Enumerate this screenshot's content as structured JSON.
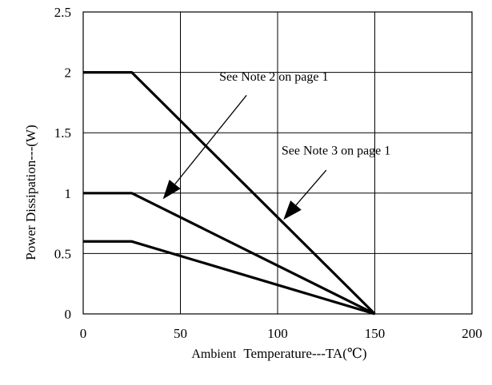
{
  "chart_data": {
    "type": "line",
    "xlabel_parts": [
      "Ambient",
      "Temperature---TA(℃)"
    ],
    "ylabel": "Power Dissipation---(W)",
    "xlim": [
      0,
      200
    ],
    "ylim": [
      0,
      2.5
    ],
    "x_ticks": [
      0,
      50,
      100,
      150,
      200
    ],
    "y_ticks": [
      "0",
      "0.5",
      "1",
      "1.5",
      "2",
      "2.5"
    ],
    "grid": true,
    "series": [
      {
        "x": [
          0,
          25,
          150
        ],
        "y": [
          2,
          2,
          0
        ]
      },
      {
        "x": [
          0,
          25,
          150
        ],
        "y": [
          1,
          1,
          0
        ]
      },
      {
        "x": [
          0,
          25,
          150
        ],
        "y": [
          0.6,
          0.6,
          0
        ]
      }
    ],
    "annotations": [
      {
        "text": "See Note 2 on page 1",
        "text_at": [
          70,
          1.93
        ],
        "from": [
          84,
          1.81
        ],
        "to": [
          41,
          0.95
        ]
      },
      {
        "text": "See Note 3 on page 1",
        "text_at": [
          102,
          1.32
        ],
        "from": [
          125,
          1.19
        ],
        "to": [
          103,
          0.78
        ]
      }
    ]
  }
}
